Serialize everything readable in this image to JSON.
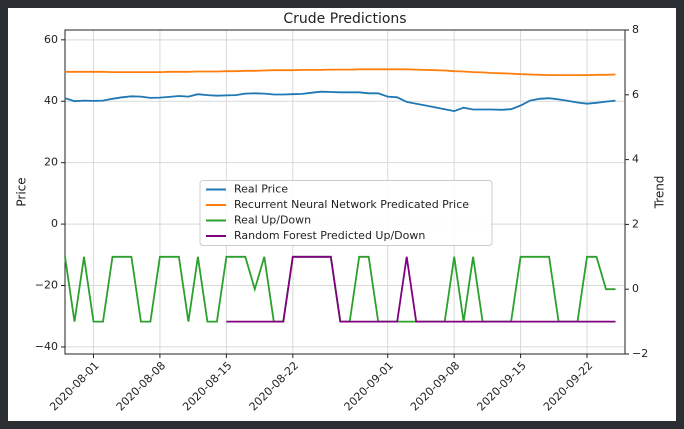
{
  "chart_data": {
    "type": "line",
    "title": "Crude Predictions",
    "y_label": "Price",
    "y2_label": "Trend",
    "x": [
      "2020-07-29",
      "2020-07-30",
      "2020-07-31",
      "2020-08-01",
      "2020-08-02",
      "2020-08-03",
      "2020-08-04",
      "2020-08-05",
      "2020-08-06",
      "2020-08-07",
      "2020-08-08",
      "2020-08-09",
      "2020-08-10",
      "2020-08-11",
      "2020-08-12",
      "2020-08-13",
      "2020-08-14",
      "2020-08-15",
      "2020-08-16",
      "2020-08-17",
      "2020-08-18",
      "2020-08-19",
      "2020-08-20",
      "2020-08-21",
      "2020-08-22",
      "2020-08-23",
      "2020-08-24",
      "2020-08-25",
      "2020-08-26",
      "2020-08-27",
      "2020-08-28",
      "2020-08-29",
      "2020-08-30",
      "2020-08-31",
      "2020-09-01",
      "2020-09-02",
      "2020-09-03",
      "2020-09-04",
      "2020-09-05",
      "2020-09-06",
      "2020-09-07",
      "2020-09-08",
      "2020-09-09",
      "2020-09-10",
      "2020-09-11",
      "2020-09-12",
      "2020-09-13",
      "2020-09-14",
      "2020-09-15",
      "2020-09-16",
      "2020-09-17",
      "2020-09-18",
      "2020-09-19",
      "2020-09-20",
      "2020-09-21",
      "2020-09-22",
      "2020-09-23",
      "2020-09-24",
      "2020-09-25"
    ],
    "series": [
      {
        "name": "Real Price",
        "color": "#1f77b4",
        "values": [
          41,
          40,
          40.2,
          40.1,
          40.2,
          40.8,
          41.3,
          41.6,
          41.5,
          41.1,
          41.2,
          41.4,
          41.7,
          41.5,
          42.3,
          42.0,
          41.8,
          41.9,
          42.0,
          42.5,
          42.6,
          42.5,
          42.2,
          42.2,
          42.3,
          42.4,
          42.8,
          43.1,
          43.0,
          42.9,
          42.9,
          42.9,
          42.6,
          42.6,
          41.5,
          41.3,
          39.8,
          39.2,
          38.6,
          38.0,
          37.4,
          36.8,
          37.9,
          37.3,
          37.3,
          37.3,
          37.2,
          37.4,
          38.6,
          40.2,
          40.8,
          41.0,
          40.6,
          40.1,
          39.6,
          39.2,
          39.5,
          39.9,
          40.2
        ]
      },
      {
        "name": "Recurrent Neural Network Predicated Price",
        "color": "#ff7f0e",
        "values": [
          49.6,
          49.6,
          49.6,
          49.6,
          49.6,
          49.5,
          49.5,
          49.5,
          49.5,
          49.5,
          49.5,
          49.6,
          49.6,
          49.6,
          49.7,
          49.7,
          49.7,
          49.8,
          49.8,
          49.9,
          49.9,
          50.0,
          50.1,
          50.1,
          50.1,
          50.2,
          50.2,
          50.2,
          50.3,
          50.3,
          50.3,
          50.4,
          50.4,
          50.4,
          50.4,
          50.4,
          50.4,
          50.3,
          50.2,
          50.1,
          50.0,
          49.8,
          49.7,
          49.5,
          49.4,
          49.2,
          49.1,
          49.0,
          48.8,
          48.7,
          48.6,
          48.5,
          48.5,
          48.5,
          48.5,
          48.5,
          48.6,
          48.6,
          48.7
        ]
      },
      {
        "name": "Real Up/Down",
        "color": "#2ca02c",
        "axis": "y2",
        "values": [
          1,
          -1,
          1,
          -1,
          -1,
          1,
          1,
          1,
          -1,
          -1,
          1,
          1,
          1,
          -1,
          1,
          -1,
          -1,
          1,
          1,
          1,
          0,
          1,
          -1,
          -1,
          1,
          1,
          1,
          1,
          1,
          -1,
          -1,
          1,
          1,
          -1,
          -1,
          -1,
          -1,
          -1,
          -1,
          -1,
          -1,
          1,
          -1,
          1,
          -1,
          -1,
          -1,
          -1,
          1,
          1,
          1,
          1,
          -1,
          -1,
          -1,
          1,
          1,
          0,
          0
        ]
      },
      {
        "name": "Random Forest Predicted Up/Down",
        "color": "#800080",
        "axis": "y2",
        "values": [
          null,
          null,
          null,
          null,
          null,
          null,
          null,
          null,
          null,
          null,
          null,
          null,
          null,
          null,
          null,
          null,
          null,
          -1,
          -1,
          -1,
          -1,
          -1,
          -1,
          -1,
          1,
          1,
          1,
          1,
          1,
          -1,
          -1,
          -1,
          -1,
          -1,
          -1,
          -1,
          1,
          -1,
          -1,
          -1,
          -1,
          -1,
          -1,
          -1,
          -1,
          -1,
          -1,
          -1,
          -1,
          -1,
          -1,
          -1,
          -1,
          -1,
          -1,
          -1,
          -1,
          -1,
          -1
        ]
      }
    ],
    "xlim": [
      "2020-07-29",
      "2020-09-26"
    ],
    "xticks": [
      "2020-08-01",
      "2020-08-08",
      "2020-08-15",
      "2020-08-22",
      "2020-09-01",
      "2020-09-08",
      "2020-09-15",
      "2020-09-22"
    ],
    "ylim": [
      -42.3,
      63.2
    ],
    "yticks": [
      {
        "value": -40,
        "label": "−40"
      },
      {
        "value": -20,
        "label": "−20"
      },
      0,
      20,
      40,
      60
    ],
    "y2lim": [
      -2,
      8
    ],
    "y2ticks": [
      {
        "value": -2,
        "label": "−2"
      },
      0,
      2,
      4,
      6,
      8
    ],
    "grid": true,
    "legend": "center"
  }
}
